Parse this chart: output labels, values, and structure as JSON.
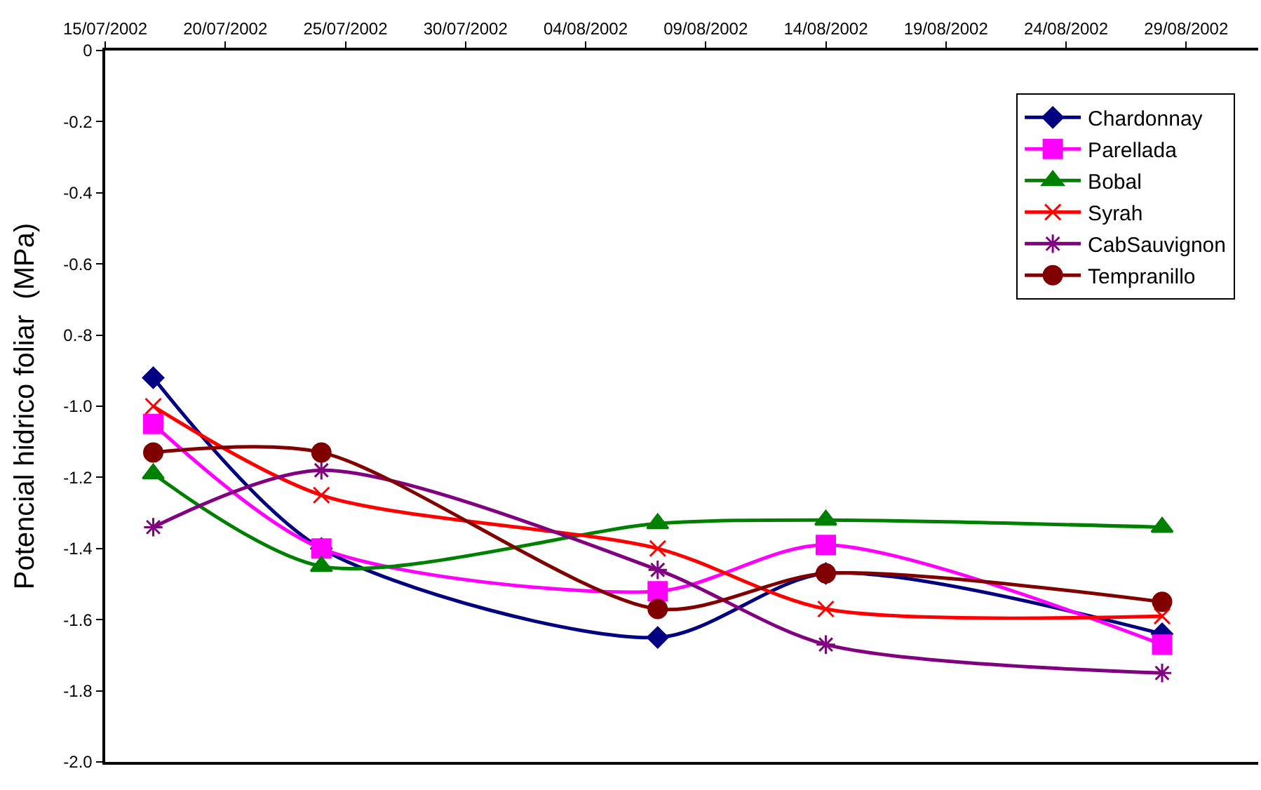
{
  "chart_data": {
    "type": "line",
    "ylabel": "Potencial hidrico foliar  (MPa)",
    "x": [
      "2002-07-17",
      "2002-07-24",
      "2002-08-07",
      "2002-08-14",
      "2002-08-28"
    ],
    "series": [
      {
        "name": "Chardonnay",
        "color": "#000080",
        "marker": "diamond",
        "values": [
          -0.92,
          -1.4,
          -1.65,
          -1.47,
          -1.64
        ]
      },
      {
        "name": "Parellada",
        "color": "#ff00ff",
        "marker": "square",
        "values": [
          -1.05,
          -1.4,
          -1.52,
          -1.39,
          -1.67
        ]
      },
      {
        "name": "Bobal",
        "color": "#008000",
        "marker": "triangle",
        "values": [
          -1.19,
          -1.45,
          -1.33,
          -1.32,
          -1.34
        ]
      },
      {
        "name": "Syrah",
        "color": "#ff0000",
        "marker": "cross",
        "values": [
          -1.0,
          -1.25,
          -1.4,
          -1.57,
          -1.59
        ]
      },
      {
        "name": "CabSauvignon",
        "color": "#800080",
        "marker": "cross",
        "values": [
          -1.34,
          -1.18,
          -1.46,
          -1.67,
          -1.75
        ]
      },
      {
        "name": "Tempranillo",
        "color": "#800000",
        "marker": "circle",
        "values": [
          -1.13,
          -1.13,
          -1.57,
          -1.47,
          -1.55
        ]
      }
    ],
    "xlim": [
      "2002-07-15",
      "2002-09-01"
    ],
    "xticks": [
      {
        "value": "2002-07-15",
        "label": "15/07/2002"
      },
      {
        "value": "2002-07-20",
        "label": "20/07/2002"
      },
      {
        "value": "2002-07-25",
        "label": "25/07/2002"
      },
      {
        "value": "2002-07-30",
        "label": "30/07/2002"
      },
      {
        "value": "2002-08-04",
        "label": "04/08/2002"
      },
      {
        "value": "2002-08-09",
        "label": "09/08/2002"
      },
      {
        "value": "2002-08-14",
        "label": "14/08/2002"
      },
      {
        "value": "2002-08-19",
        "label": "19/08/2002"
      },
      {
        "value": "2002-08-24",
        "label": "24/08/2002"
      },
      {
        "value": "2002-08-29",
        "label": "29/08/2002"
      }
    ],
    "ylim": [
      -2.0,
      0
    ],
    "yticks": [
      0,
      -0.2,
      -0.4,
      -0.6,
      {
        "value": -0.8,
        "label": "0.-8"
      },
      {
        "value": -1.0,
        "label": "-1.0"
      },
      -1.2,
      -1.4,
      -1.6,
      -1.8,
      {
        "value": -2.0,
        "label": "-2.0"
      }
    ],
    "grid": false,
    "legend": "top right",
    "line_style": "solid"
  }
}
